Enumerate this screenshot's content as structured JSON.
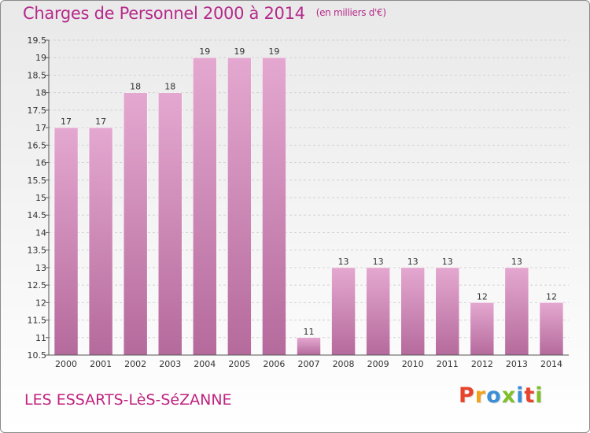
{
  "header": {
    "title": "Charges de Personnel 2000 à 2014",
    "unit": "(en milliers d'€)"
  },
  "footer": {
    "commune": "LES ESSARTS-LèS-SéZANNE",
    "logo": "Proxiti",
    "logo_colors": [
      "#e8432c",
      "#f2a21b",
      "#3a8fd6",
      "#7fbf2a",
      "#3a8fd6",
      "#e8432c",
      "#7fbf2a"
    ]
  },
  "colors": {
    "accent": "#b52a8a",
    "bar_top": "#e4a8d0",
    "bar_bottom": "#b56a9c",
    "grid": "#d2d2d2"
  },
  "chart_data": {
    "type": "bar",
    "title": "Charges de Personnel 2000 à 2014",
    "subtitle": "(en milliers d'€)",
    "xlabel": "",
    "ylabel": "",
    "categories": [
      "2000",
      "2001",
      "2002",
      "2003",
      "2004",
      "2005",
      "2006",
      "2007",
      "2008",
      "2009",
      "2010",
      "2011",
      "2012",
      "2013",
      "2014"
    ],
    "values": [
      17,
      17,
      18,
      18,
      19,
      19,
      19,
      11,
      13,
      13,
      13,
      13,
      12,
      13,
      12
    ],
    "ylim": [
      10.5,
      19.5
    ],
    "yticks": [
      10.5,
      11,
      11.5,
      12,
      12.5,
      13,
      13.5,
      14,
      14.5,
      15,
      15.5,
      16,
      16.5,
      17,
      17.5,
      18,
      18.5,
      19,
      19.5
    ],
    "grid": true,
    "legend": "none"
  }
}
